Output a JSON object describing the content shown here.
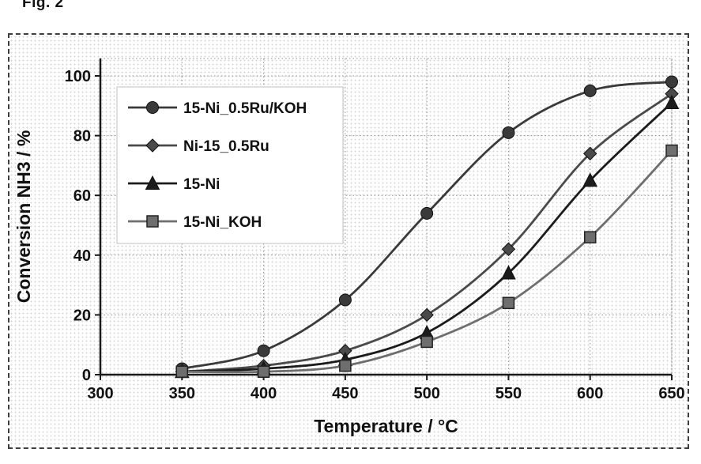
{
  "figure": {
    "caption": "Fig. 2"
  },
  "chart_data": {
    "type": "line",
    "title": "Fig. 2",
    "xlabel": "Temperature / °C",
    "ylabel": "Conversion NH3 / %",
    "xlim": [
      300,
      650
    ],
    "ylim": [
      0,
      100
    ],
    "x_ticks": [
      300,
      350,
      400,
      450,
      500,
      550,
      600,
      650
    ],
    "y_ticks": [
      0,
      20,
      40,
      60,
      80,
      100
    ],
    "grid": true,
    "legend_position": "upper-left",
    "axis_color": "#1a1a1a",
    "grid_color": "#8f8f8f",
    "x": [
      350,
      400,
      450,
      500,
      550,
      600,
      650
    ],
    "series": [
      {
        "name": "15-Ni_0.5Ru/KOH",
        "marker": "circle",
        "color": "#3a3a3a",
        "values": [
          2,
          8,
          25,
          54,
          81,
          95,
          98
        ]
      },
      {
        "name": "Ni-15_0.5Ru",
        "marker": "diamond",
        "color": "#4a4a4a",
        "values": [
          1,
          3,
          8,
          20,
          42,
          74,
          94
        ]
      },
      {
        "name": "15-Ni",
        "marker": "triangle",
        "color": "#1c1c1c",
        "values": [
          1,
          2,
          5,
          14,
          34,
          65,
          91
        ]
      },
      {
        "name": "15-Ni_KOH",
        "marker": "square",
        "color": "#6e6e6e",
        "values": [
          1,
          1,
          3,
          11,
          24,
          46,
          75
        ]
      }
    ]
  }
}
